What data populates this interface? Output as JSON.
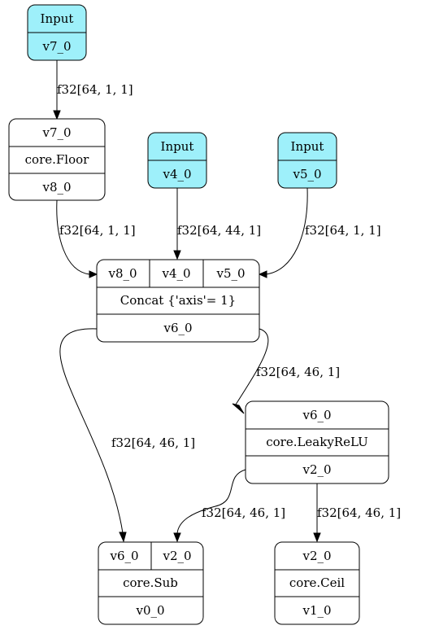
{
  "nodes": {
    "input_v7": {
      "header": "Input",
      "output": "v7_0"
    },
    "floor": {
      "input": "v7_0",
      "op": "core.Floor",
      "output": "v8_0"
    },
    "input_v4": {
      "header": "Input",
      "output": "v4_0"
    },
    "input_v5": {
      "header": "Input",
      "output": "v5_0"
    },
    "concat": {
      "inputs": [
        "v8_0",
        "v4_0",
        "v5_0"
      ],
      "op": "Concat {'axis'= 1}",
      "output": "v6_0"
    },
    "leakyrelu": {
      "input": "v6_0",
      "op": "core.LeakyReLU",
      "output": "v2_0"
    },
    "sub": {
      "inputs": [
        "v6_0",
        "v2_0"
      ],
      "op": "core.Sub",
      "output": "v0_0"
    },
    "ceil": {
      "input": "v2_0",
      "op": "core.Ceil",
      "output": "v1_0"
    }
  },
  "edges": {
    "v7_to_floor": "f32[64, 1, 1]",
    "floor_to_concat": "f32[64, 1, 1]",
    "v4_to_concat": "f32[64, 44, 1]",
    "v5_to_concat": "f32[64, 1, 1]",
    "concat_to_leakyrelu": "f32[64, 46, 1]",
    "concat_to_sub": "f32[64, 46, 1]",
    "leakyrelu_to_sub": "f32[64, 46, 1]",
    "leakyrelu_to_ceil": "f32[64, 46, 1]"
  },
  "colors": {
    "input_fill": "#9ef0fa",
    "stroke": "#000000",
    "background": "#ffffff"
  }
}
